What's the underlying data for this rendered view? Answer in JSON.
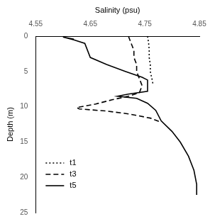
{
  "chart_data": {
    "type": "line",
    "x_label": "Salinity (psu)",
    "y_label": "Depth (m)",
    "xlim": [
      4.55,
      4.85
    ],
    "xticks": [
      4.55,
      4.65,
      4.75,
      4.85
    ],
    "ylim": [
      0,
      25
    ],
    "yticks": [
      0,
      5,
      10,
      15,
      20,
      25
    ],
    "grid": false,
    "legend": "lower left",
    "series": [
      {
        "name": "t1",
        "color": "#000000",
        "line_style": "dotted",
        "marker": "none",
        "x": [
          4.755,
          4.757,
          4.758,
          4.758,
          4.76,
          4.76,
          4.763,
          4.765
        ],
        "values": [
          0,
          1,
          2,
          3,
          4,
          5,
          6,
          6.8
        ]
      },
      {
        "name": "t3",
        "color": "#000000",
        "line_style": "dashed",
        "marker": "none",
        "x": [
          4.72,
          4.725,
          4.73,
          4.73,
          4.735,
          4.735,
          4.74,
          4.745,
          4.74,
          4.72,
          4.69,
          4.66,
          4.625,
          4.63,
          4.68,
          4.72,
          4.76,
          4.78
        ],
        "values": [
          0,
          1,
          2,
          3,
          4,
          5,
          6,
          7,
          8,
          8.5,
          9,
          9.6,
          10.1,
          10.3,
          10.6,
          11,
          11.6,
          12.2
        ]
      },
      {
        "name": "t5",
        "color": "#000000",
        "line_style": "solid",
        "marker": "none",
        "x": [
          4.62,
          4.6,
          4.62,
          4.64,
          4.645,
          4.65,
          4.68,
          4.715,
          4.745,
          4.755,
          4.755,
          4.755,
          4.72,
          4.7,
          4.735,
          4.755,
          4.77,
          4.78,
          4.8,
          4.815,
          4.83,
          4.84,
          4.845,
          4.845
        ],
        "values": [
          0.4,
          0.1,
          0.5,
          1,
          2,
          3,
          4,
          5,
          5.8,
          6.2,
          7,
          7.8,
          8.2,
          8.5,
          8.8,
          9.5,
          10.5,
          12,
          13.5,
          15,
          17,
          19,
          21,
          22.5
        ]
      }
    ]
  }
}
